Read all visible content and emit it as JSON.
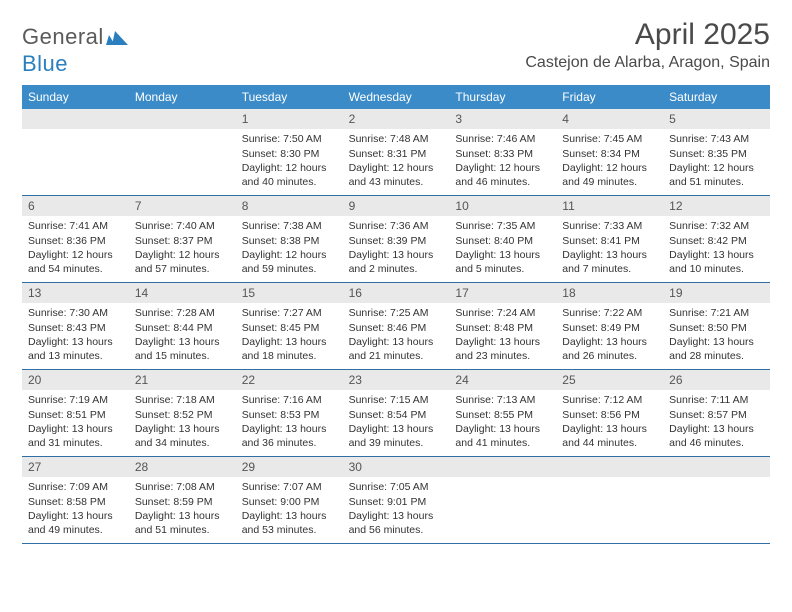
{
  "brand": {
    "name_part1": "General",
    "name_part2": "Blue",
    "mark_color": "#2b7fbf",
    "text_color_gray": "#5a5a5a"
  },
  "header": {
    "month_title": "April 2025",
    "location": "Castejon de Alarba, Aragon, Spain"
  },
  "colors": {
    "header_bg": "#3b8bc9",
    "header_text": "#ffffff",
    "daynum_bg": "#e9e9e9",
    "rule": "#2f6fa3",
    "body_text": "#333333"
  },
  "weekdays": [
    "Sunday",
    "Monday",
    "Tuesday",
    "Wednesday",
    "Thursday",
    "Friday",
    "Saturday"
  ],
  "weeks": [
    [
      {
        "n": "",
        "lines": []
      },
      {
        "n": "",
        "lines": []
      },
      {
        "n": "1",
        "lines": [
          "Sunrise: 7:50 AM",
          "Sunset: 8:30 PM",
          "Daylight: 12 hours and 40 minutes."
        ]
      },
      {
        "n": "2",
        "lines": [
          "Sunrise: 7:48 AM",
          "Sunset: 8:31 PM",
          "Daylight: 12 hours and 43 minutes."
        ]
      },
      {
        "n": "3",
        "lines": [
          "Sunrise: 7:46 AM",
          "Sunset: 8:33 PM",
          "Daylight: 12 hours and 46 minutes."
        ]
      },
      {
        "n": "4",
        "lines": [
          "Sunrise: 7:45 AM",
          "Sunset: 8:34 PM",
          "Daylight: 12 hours and 49 minutes."
        ]
      },
      {
        "n": "5",
        "lines": [
          "Sunrise: 7:43 AM",
          "Sunset: 8:35 PM",
          "Daylight: 12 hours and 51 minutes."
        ]
      }
    ],
    [
      {
        "n": "6",
        "lines": [
          "Sunrise: 7:41 AM",
          "Sunset: 8:36 PM",
          "Daylight: 12 hours and 54 minutes."
        ]
      },
      {
        "n": "7",
        "lines": [
          "Sunrise: 7:40 AM",
          "Sunset: 8:37 PM",
          "Daylight: 12 hours and 57 minutes."
        ]
      },
      {
        "n": "8",
        "lines": [
          "Sunrise: 7:38 AM",
          "Sunset: 8:38 PM",
          "Daylight: 12 hours and 59 minutes."
        ]
      },
      {
        "n": "9",
        "lines": [
          "Sunrise: 7:36 AM",
          "Sunset: 8:39 PM",
          "Daylight: 13 hours and 2 minutes."
        ]
      },
      {
        "n": "10",
        "lines": [
          "Sunrise: 7:35 AM",
          "Sunset: 8:40 PM",
          "Daylight: 13 hours and 5 minutes."
        ]
      },
      {
        "n": "11",
        "lines": [
          "Sunrise: 7:33 AM",
          "Sunset: 8:41 PM",
          "Daylight: 13 hours and 7 minutes."
        ]
      },
      {
        "n": "12",
        "lines": [
          "Sunrise: 7:32 AM",
          "Sunset: 8:42 PM",
          "Daylight: 13 hours and 10 minutes."
        ]
      }
    ],
    [
      {
        "n": "13",
        "lines": [
          "Sunrise: 7:30 AM",
          "Sunset: 8:43 PM",
          "Daylight: 13 hours and 13 minutes."
        ]
      },
      {
        "n": "14",
        "lines": [
          "Sunrise: 7:28 AM",
          "Sunset: 8:44 PM",
          "Daylight: 13 hours and 15 minutes."
        ]
      },
      {
        "n": "15",
        "lines": [
          "Sunrise: 7:27 AM",
          "Sunset: 8:45 PM",
          "Daylight: 13 hours and 18 minutes."
        ]
      },
      {
        "n": "16",
        "lines": [
          "Sunrise: 7:25 AM",
          "Sunset: 8:46 PM",
          "Daylight: 13 hours and 21 minutes."
        ]
      },
      {
        "n": "17",
        "lines": [
          "Sunrise: 7:24 AM",
          "Sunset: 8:48 PM",
          "Daylight: 13 hours and 23 minutes."
        ]
      },
      {
        "n": "18",
        "lines": [
          "Sunrise: 7:22 AM",
          "Sunset: 8:49 PM",
          "Daylight: 13 hours and 26 minutes."
        ]
      },
      {
        "n": "19",
        "lines": [
          "Sunrise: 7:21 AM",
          "Sunset: 8:50 PM",
          "Daylight: 13 hours and 28 minutes."
        ]
      }
    ],
    [
      {
        "n": "20",
        "lines": [
          "Sunrise: 7:19 AM",
          "Sunset: 8:51 PM",
          "Daylight: 13 hours and 31 minutes."
        ]
      },
      {
        "n": "21",
        "lines": [
          "Sunrise: 7:18 AM",
          "Sunset: 8:52 PM",
          "Daylight: 13 hours and 34 minutes."
        ]
      },
      {
        "n": "22",
        "lines": [
          "Sunrise: 7:16 AM",
          "Sunset: 8:53 PM",
          "Daylight: 13 hours and 36 minutes."
        ]
      },
      {
        "n": "23",
        "lines": [
          "Sunrise: 7:15 AM",
          "Sunset: 8:54 PM",
          "Daylight: 13 hours and 39 minutes."
        ]
      },
      {
        "n": "24",
        "lines": [
          "Sunrise: 7:13 AM",
          "Sunset: 8:55 PM",
          "Daylight: 13 hours and 41 minutes."
        ]
      },
      {
        "n": "25",
        "lines": [
          "Sunrise: 7:12 AM",
          "Sunset: 8:56 PM",
          "Daylight: 13 hours and 44 minutes."
        ]
      },
      {
        "n": "26",
        "lines": [
          "Sunrise: 7:11 AM",
          "Sunset: 8:57 PM",
          "Daylight: 13 hours and 46 minutes."
        ]
      }
    ],
    [
      {
        "n": "27",
        "lines": [
          "Sunrise: 7:09 AM",
          "Sunset: 8:58 PM",
          "Daylight: 13 hours and 49 minutes."
        ]
      },
      {
        "n": "28",
        "lines": [
          "Sunrise: 7:08 AM",
          "Sunset: 8:59 PM",
          "Daylight: 13 hours and 51 minutes."
        ]
      },
      {
        "n": "29",
        "lines": [
          "Sunrise: 7:07 AM",
          "Sunset: 9:00 PM",
          "Daylight: 13 hours and 53 minutes."
        ]
      },
      {
        "n": "30",
        "lines": [
          "Sunrise: 7:05 AM",
          "Sunset: 9:01 PM",
          "Daylight: 13 hours and 56 minutes."
        ]
      },
      {
        "n": "",
        "lines": []
      },
      {
        "n": "",
        "lines": []
      },
      {
        "n": "",
        "lines": []
      }
    ]
  ]
}
